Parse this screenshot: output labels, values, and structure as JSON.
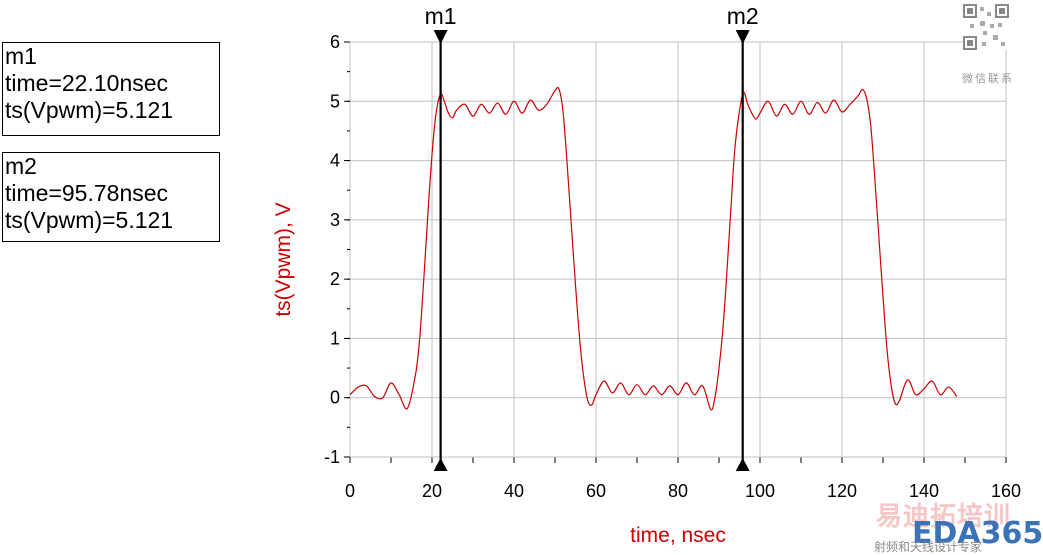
{
  "markers": [
    {
      "name": "m1",
      "time_line": "time=22.10nsec",
      "value_line": "ts(Vpwm)=5.121"
    },
    {
      "name": "m2",
      "time_line": "time=95.78nsec",
      "value_line": "ts(Vpwm)=5.121"
    }
  ],
  "watermark": {
    "brand_cn": "易迪拓培训",
    "brand_en": "EDA365",
    "sub_cn": "射频和天线设计专家",
    "qr_caption": "微信联系"
  },
  "chart_data": {
    "type": "line",
    "xlabel": "time, nsec",
    "ylabel": "ts(Vpwm), V",
    "xlim": [
      0,
      160
    ],
    "ylim": [
      -1,
      6
    ],
    "x_ticks": [
      0,
      20,
      40,
      60,
      80,
      100,
      120,
      140,
      160
    ],
    "y_ticks": [
      -1,
      0,
      1,
      2,
      3,
      4,
      5,
      6
    ],
    "grid": true,
    "colors": {
      "series": "#cc0000",
      "axis_text": "#000000",
      "grid": "#c0c0c0",
      "label": "#cc0000"
    },
    "markers": [
      {
        "label": "m1",
        "x": 22.1,
        "y": 5.121
      },
      {
        "label": "m2",
        "x": 95.78,
        "y": 5.121
      }
    ],
    "series": [
      {
        "x": [
          0,
          2,
          4,
          6,
          8,
          10,
          12,
          14,
          16,
          17,
          18,
          19,
          20,
          21,
          22.1,
          23,
          24,
          25,
          26,
          28,
          30,
          32,
          34,
          36,
          38,
          40,
          42,
          44,
          46,
          48,
          50,
          51,
          52,
          53,
          54,
          55,
          56,
          57,
          58,
          59,
          60,
          62,
          64,
          66,
          68,
          70,
          72,
          74,
          76,
          78,
          80,
          82,
          84,
          86,
          88,
          89,
          90,
          91,
          92,
          93,
          94,
          95.78,
          97,
          98,
          99,
          100,
          102,
          104,
          106,
          108,
          110,
          112,
          114,
          116,
          118,
          120,
          122,
          124,
          125,
          126,
          127,
          128,
          129,
          130,
          131,
          132,
          133,
          134,
          136,
          138,
          140,
          142,
          144,
          146,
          148
        ],
        "y": [
          0.05,
          0.18,
          0.2,
          0.02,
          0.0,
          0.25,
          0.05,
          -0.18,
          0.4,
          1.0,
          2.0,
          3.1,
          4.1,
          4.8,
          5.121,
          5.0,
          4.8,
          4.72,
          4.85,
          4.95,
          4.75,
          4.95,
          4.8,
          4.97,
          4.78,
          5.0,
          4.8,
          5.02,
          4.85,
          4.95,
          5.18,
          5.2,
          4.8,
          3.9,
          2.9,
          1.9,
          1.0,
          0.35,
          -0.05,
          -0.12,
          0.05,
          0.28,
          0.08,
          0.25,
          0.05,
          0.22,
          0.05,
          0.2,
          0.05,
          0.2,
          0.05,
          0.25,
          0.05,
          0.2,
          -0.2,
          0.0,
          0.5,
          1.2,
          2.2,
          3.3,
          4.3,
          5.121,
          4.95,
          4.8,
          4.7,
          4.8,
          5.0,
          4.75,
          4.95,
          4.78,
          5.0,
          4.78,
          4.98,
          4.8,
          5.02,
          4.82,
          4.95,
          5.1,
          5.2,
          5.05,
          4.6,
          3.7,
          2.7,
          1.7,
          0.8,
          0.2,
          -0.1,
          -0.05,
          0.3,
          0.05,
          0.15,
          0.28,
          0.05,
          0.18,
          0.02
        ]
      }
    ]
  }
}
